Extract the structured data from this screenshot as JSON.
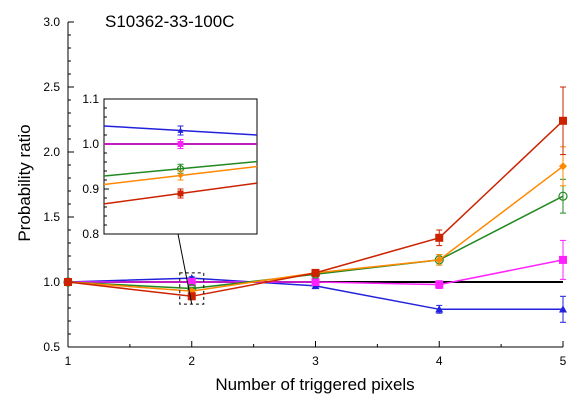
{
  "chart_data": {
    "type": "line",
    "title": "S10362-33-100C",
    "xlabel": "Number of triggered pixels",
    "ylabel": "Probability ratio",
    "xlim": [
      1,
      5
    ],
    "ylim": [
      0.5,
      3.0
    ],
    "x_ticks": [
      "1",
      "2",
      "3",
      "4",
      "5"
    ],
    "y_ticks": [
      "0.5",
      "1.0",
      "1.5",
      "2.0",
      "2.5",
      "3.0"
    ],
    "x": [
      1,
      2,
      3,
      4,
      5
    ],
    "reference_line": 1.0,
    "series": [
      {
        "color": "#2222dd",
        "marker": "triangle",
        "values": [
          1.0,
          1.03,
          0.97,
          0.79,
          0.79
        ],
        "errors": [
          0,
          0.01,
          0.015,
          0.03,
          0.1
        ]
      },
      {
        "color": "#ff22ff",
        "marker": "square",
        "values": [
          1.0,
          1.0,
          1.0,
          0.98,
          1.17
        ],
        "errors": [
          0,
          0.01,
          0.015,
          0.03,
          0.15
        ]
      },
      {
        "color": "#228822",
        "marker": "circle-open",
        "values": [
          1.0,
          0.95,
          1.06,
          1.17,
          1.66
        ],
        "errors": [
          0,
          0.01,
          0.02,
          0.04,
          0.13
        ]
      },
      {
        "color": "#ff8800",
        "marker": "diamond",
        "values": [
          1.0,
          0.93,
          1.07,
          1.17,
          1.89
        ],
        "errors": [
          0,
          0.01,
          0.02,
          0.04,
          0.15
        ]
      },
      {
        "color": "#cc2200",
        "marker": "square",
        "values": [
          1.0,
          0.89,
          1.07,
          1.34,
          2.24
        ],
        "errors": [
          0,
          0.01,
          0.02,
          0.06,
          0.26
        ]
      }
    ],
    "inset": {
      "x_center": 2,
      "ylim": [
        0.8,
        1.1
      ],
      "y_ticks": [
        "0.8",
        "0.9",
        "1.0",
        "1.1"
      ],
      "values": [
        1.03,
        1.0,
        0.945,
        0.93,
        0.89
      ]
    },
    "grid": false,
    "legend": "none"
  }
}
